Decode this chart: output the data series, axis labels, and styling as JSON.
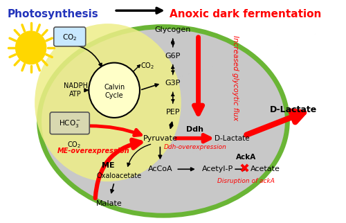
{
  "bg_color": "#ffffff",
  "cell_color": "#c8c8c8",
  "cell_green": "#7ab648",
  "yellow_color": "#e8e890",
  "sun_color": "#FFD700",
  "photosynthesis_label": "Photosynthesis",
  "fermentation_label": "Anoxic dark fermentation",
  "dlactate_right": "D-Lactate",
  "co2_box_color": "#b8d8f0",
  "hco3_box_color": "#d8d8b0"
}
